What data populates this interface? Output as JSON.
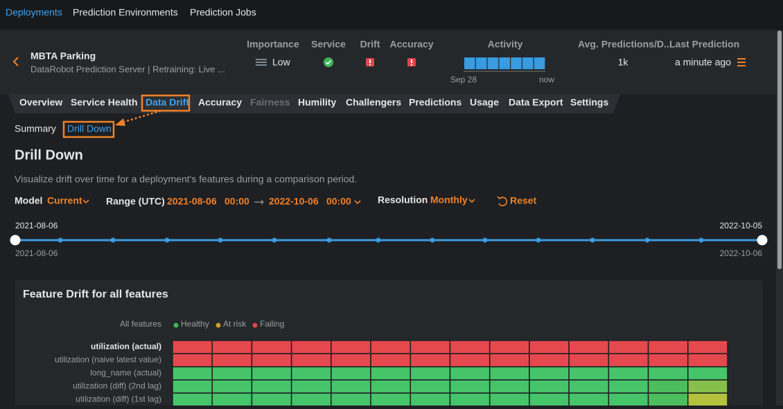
{
  "nav": {
    "tabs": [
      "Deployments",
      "Prediction Environments",
      "Prediction Jobs"
    ]
  },
  "deployment": {
    "name": "MBTA Parking",
    "subtitle": "DataRobot Prediction Server | Retraining: Live ..."
  },
  "stats": {
    "importance": {
      "label": "Importance",
      "value": "Low"
    },
    "service": {
      "label": "Service"
    },
    "drift": {
      "label": "Drift"
    },
    "accuracy": {
      "label": "Accuracy"
    },
    "activity": {
      "label": "Activity",
      "start": "Sep 28",
      "end": "now"
    },
    "avg_predictions": {
      "label": "Avg. Predictions/D...",
      "value": "1k"
    },
    "last_prediction": {
      "label": "Last Prediction",
      "value": "a minute ago"
    }
  },
  "tabs": [
    "Overview",
    "Service Health",
    "Data Drift",
    "Accuracy",
    "Fairness",
    "Humility",
    "Challengers",
    "Predictions",
    "Usage",
    "Data Export",
    "Settings"
  ],
  "subtabs": [
    "Summary",
    "Drill Down"
  ],
  "page": {
    "title": "Drill Down",
    "description": "Visualize drift over time for a deployment's features during a comparison period.",
    "filters": {
      "model_label": "Model",
      "model_value": "Current",
      "range_label": "Range (UTC)",
      "start_date": "2021-08-06",
      "start_time": "00:00",
      "end_date": "2022-10-06",
      "end_time": "00:00",
      "resolution_label": "Resolution",
      "resolution_value": "Monthly",
      "reset": "Reset"
    },
    "timeline": {
      "top_start": "2021-08-06",
      "top_end": "2022-10-05",
      "bottom_start": "2021-08-06",
      "bottom_end": "2022-10-06"
    }
  },
  "heatmap": {
    "title": "Feature Drift for all features",
    "legend_label": "All features",
    "legend": [
      {
        "name": "Healthy",
        "color": "#3fb55a"
      },
      {
        "name": "At risk",
        "color": "#c9a227"
      },
      {
        "name": "Failing",
        "color": "#e0474c"
      }
    ],
    "rows": [
      {
        "feature": "utilization (actual)",
        "colors": [
          "#e5484d",
          "#e5484d",
          "#e5484d",
          "#e5484d",
          "#e5484d",
          "#e5484d",
          "#e5484d",
          "#e5484d",
          "#e5484d",
          "#e5484d",
          "#e5484d",
          "#e5484d",
          "#e5484d",
          "#e5484d"
        ]
      },
      {
        "feature": "utilization (naive latest value)",
        "colors": [
          "#e5484d",
          "#e5484d",
          "#e5484d",
          "#e5484d",
          "#e5484d",
          "#e5484d",
          "#e5484d",
          "#e5484d",
          "#e5484d",
          "#e5484d",
          "#e5484d",
          "#e5484d",
          "#e5484d",
          "#e5484d"
        ]
      },
      {
        "feature": "long_name (actual)",
        "colors": [
          "#45c46a",
          "#45c46a",
          "#45c46a",
          "#45c46a",
          "#45c46a",
          "#45c46a",
          "#45c46a",
          "#45c46a",
          "#45c46a",
          "#45c46a",
          "#45c46a",
          "#45c46a",
          "#45c46a",
          "#45c46a"
        ]
      },
      {
        "feature": "utilization (diff) (2nd lag)",
        "colors": [
          "#45c46a",
          "#45c46a",
          "#45c46a",
          "#45c46a",
          "#45c46a",
          "#45c46a",
          "#45c46a",
          "#45c46a",
          "#45c46a",
          "#45c46a",
          "#45c46a",
          "#45c46a",
          "#4cbd5c",
          "#86c04a"
        ]
      },
      {
        "feature": "utilization (diff) (1st lag)",
        "colors": [
          "#45c46a",
          "#45c46a",
          "#45c46a",
          "#45c46a",
          "#45c46a",
          "#45c46a",
          "#45c46a",
          "#45c46a",
          "#45c46a",
          "#45c46a",
          "#45c46a",
          "#45c46a",
          "#4cbd5c",
          "#b3c13c"
        ]
      }
    ]
  }
}
